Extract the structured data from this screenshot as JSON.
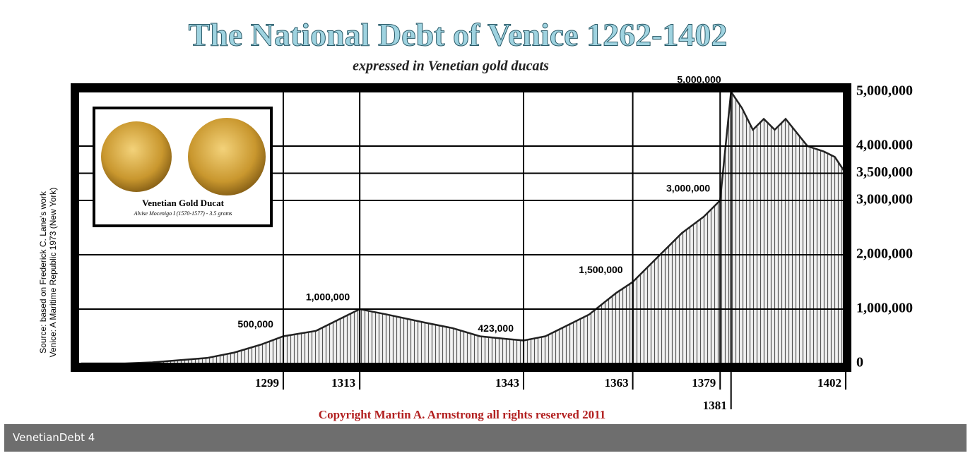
{
  "chart_data": {
    "type": "area",
    "title": "The National Debt of Venice 1262-1402",
    "subtitle": "expressed in Venetian gold ducats",
    "x": [
      1262,
      1270,
      1275,
      1280,
      1285,
      1290,
      1295,
      1299,
      1305,
      1310,
      1313,
      1318,
      1325,
      1330,
      1335,
      1340,
      1343,
      1347,
      1350,
      1355,
      1360,
      1363,
      1368,
      1372,
      1376,
      1379,
      1380,
      1381,
      1383,
      1385,
      1387,
      1389,
      1391,
      1395,
      1398,
      1400,
      1402
    ],
    "values": [
      0,
      0,
      20000,
      60000,
      100000,
      200000,
      350000,
      500000,
      600000,
      850000,
      1000000,
      900000,
      750000,
      650000,
      500000,
      450000,
      423000,
      500000,
      650000,
      900000,
      1300000,
      1500000,
      2000000,
      2400000,
      2700000,
      3000000,
      4000000,
      5000000,
      4700000,
      4300000,
      4500000,
      4300000,
      4500000,
      4000000,
      3900000,
      3800000,
      3500000
    ],
    "value_labels": [
      null,
      null,
      null,
      null,
      null,
      null,
      null,
      "500,000",
      null,
      null,
      "1,000,000",
      null,
      null,
      null,
      null,
      null,
      "423,000",
      null,
      null,
      null,
      null,
      "1,500,000",
      null,
      null,
      null,
      "3,000,000",
      null,
      "5,000,000",
      null,
      null,
      null,
      null,
      null,
      null,
      null,
      null,
      null
    ],
    "color": "#222222",
    "xlim": [
      1262,
      1402
    ],
    "xticks": [
      1299,
      1313,
      1343,
      1363,
      1379,
      1381,
      1402
    ],
    "ylim": [
      0,
      5000000
    ],
    "yticks": [
      0,
      {
        "value": 1000000,
        "label": "1,000,000"
      },
      {
        "value": 2000000,
        "label": "2,000,000"
      },
      {
        "value": 3000000,
        "label": "3,000,000"
      },
      {
        "value": 3500000,
        "label": "3,500,000"
      },
      {
        "value": 4000000,
        "label": "4,000.000"
      },
      {
        "value": 5000000,
        "label": "5,000,000"
      }
    ],
    "grid": true
  },
  "source": [
    "Source: based on Frederick C. Lane's work",
    "Venice: A Maritime Republic 1973 (New York)"
  ],
  "inset": {
    "title": "Venetian Gold Ducat",
    "subtitle": "Alvise Mocenigo I (1570-1577)  - 3.5 grams"
  },
  "copyright": "Copyright Martin A. Armstrong all rights reserved 2011",
  "caption": "VenetianDebt 4"
}
